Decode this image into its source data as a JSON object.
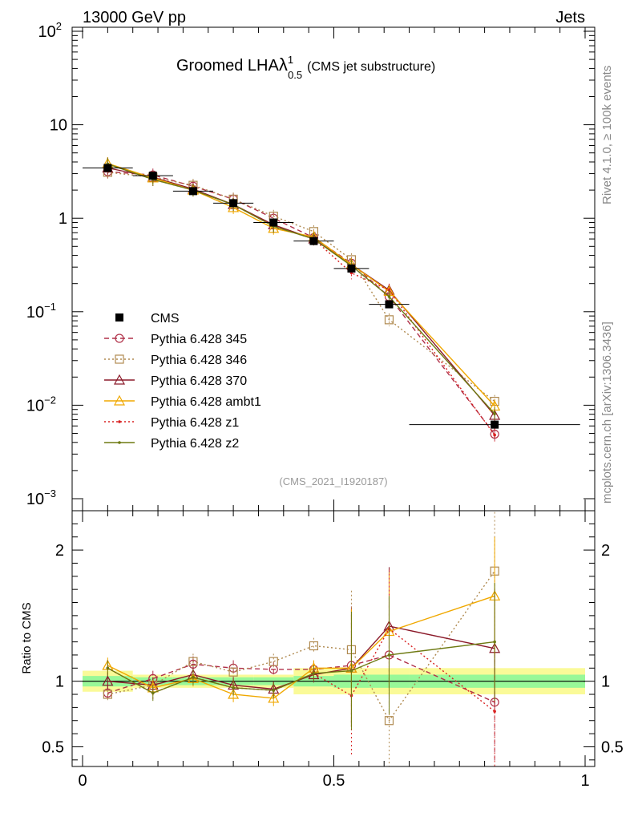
{
  "header": {
    "left": "13000 GeV pp",
    "right": "Jets"
  },
  "side_labels": {
    "rivet": "Rivet 4.1.0, ≥ 100k events",
    "mcplots": "mcplots.cern.ch [arXiv:1306.3436]"
  },
  "plot_title": {
    "main": "Groomed LHA",
    "lambda": "λ",
    "sup": "1",
    "sub": "0.5",
    "detail": "(CMS jet substructure)"
  },
  "analysis_id": "(CMS_2021_I1920187)",
  "colors": {
    "p345": "#b03048",
    "p346": "#b08a50",
    "p370": "#8b1a2a",
    "ambt1": "#f0a800",
    "z1": "#d82020",
    "z2": "#6e7a12",
    "band_inner": "#98f898",
    "band_outer": "#fafa98"
  },
  "chart_data": [
    {
      "type": "line",
      "panel": "main",
      "title": "Groomed LHA λ^1_0.5 (CMS jet substructure)",
      "xlabel": "",
      "ylabel": "",
      "yscale": "log",
      "xlim": [
        0,
        1
      ],
      "ylim": [
        0.001,
        100
      ],
      "y_ticks": [
        {
          "value": 0.001,
          "base": "10",
          "exp": "−3"
        },
        {
          "value": 0.01,
          "base": "10",
          "exp": "−2"
        },
        {
          "value": 0.1,
          "base": "10",
          "exp": "−1"
        },
        {
          "value": 1,
          "base": "1",
          "exp": ""
        },
        {
          "value": 10,
          "base": "10",
          "exp": ""
        },
        {
          "value": 100,
          "base": "10",
          "exp": "2"
        }
      ],
      "x": [
        0.05,
        0.14,
        0.22,
        0.3,
        0.38,
        0.46,
        0.535,
        0.61,
        0.82
      ],
      "cms": {
        "name": "CMS",
        "values": [
          3.45,
          2.85,
          1.95,
          1.45,
          0.9,
          0.57,
          0.29,
          0.12,
          0.0062
        ],
        "xerr": [
          0.05,
          0.04,
          0.04,
          0.04,
          0.04,
          0.04,
          0.035,
          0.04,
          0.17
        ]
      },
      "series": [
        {
          "name": "Pythia 6.428 345",
          "key": "p345",
          "style": "dashed",
          "marker": "circle",
          "values": [
            3.15,
            2.9,
            2.2,
            1.6,
            1.0,
            0.62,
            0.33,
            0.145,
            0.0049
          ]
        },
        {
          "name": "Pythia 6.428 346",
          "key": "p346",
          "style": "dotted",
          "marker": "square",
          "values": [
            3.1,
            2.75,
            2.25,
            1.6,
            1.05,
            0.72,
            0.36,
            0.082,
            0.011
          ]
        },
        {
          "name": "Pythia 6.428 370",
          "key": "p370",
          "style": "solid",
          "marker": "triangle",
          "values": [
            3.45,
            2.75,
            2.05,
            1.4,
            0.85,
            0.6,
            0.32,
            0.17,
            0.0078
          ]
        },
        {
          "name": "Pythia 6.428 ambt1",
          "key": "ambt1",
          "style": "solid",
          "marker": "triangle",
          "values": [
            3.85,
            2.7,
            2.0,
            1.3,
            0.78,
            0.63,
            0.32,
            0.165,
            0.0098
          ]
        },
        {
          "name": "Pythia 6.428 z1",
          "key": "z1",
          "style": "dotted",
          "marker": "dot",
          "values": [
            3.8,
            2.6,
            2.0,
            1.4,
            0.82,
            0.6,
            0.26,
            0.17,
            0.0048
          ]
        },
        {
          "name": "Pythia 6.428 z2",
          "key": "z2",
          "style": "solid",
          "marker": "dot",
          "values": [
            3.8,
            2.6,
            2.0,
            1.4,
            0.82,
            0.6,
            0.31,
            0.145,
            0.0081
          ]
        }
      ],
      "legend": {
        "position": "lower-left"
      }
    },
    {
      "type": "line",
      "panel": "ratio",
      "ylabel": "Ratio to CMS",
      "xlim": [
        0,
        1
      ],
      "ylim": [
        0.35,
        2.3
      ],
      "x_ticks": [
        {
          "value": 0,
          "label": "0"
        },
        {
          "value": 0.5,
          "label": "0.5"
        },
        {
          "value": 1,
          "label": "1"
        }
      ],
      "y_ticks": [
        {
          "value": 0.5,
          "label": "0.5"
        },
        {
          "value": 1,
          "label": "1"
        },
        {
          "value": 2,
          "label": "2"
        }
      ],
      "x": [
        0.05,
        0.14,
        0.22,
        0.3,
        0.38,
        0.46,
        0.535,
        0.61,
        0.82
      ],
      "band_edges": [
        0,
        0.1,
        0.18,
        0.26,
        0.34,
        0.42,
        0.5,
        0.57,
        0.65,
        1.0
      ],
      "band_inner": [
        0.04,
        0.03,
        0.03,
        0.03,
        0.03,
        0.04,
        0.05,
        0.05,
        0.05
      ],
      "band_outer": [
        0.08,
        0.05,
        0.05,
        0.05,
        0.05,
        0.1,
        0.1,
        0.1,
        0.1
      ],
      "series": [
        {
          "name": "Pythia 6.428 345",
          "key": "p345",
          "style": "dashed",
          "marker": "circle",
          "values": [
            0.91,
            1.02,
            1.13,
            1.1,
            1.09,
            1.09,
            1.12,
            1.2,
            0.84
          ]
        },
        {
          "name": "Pythia 6.428 346",
          "key": "p346",
          "style": "dotted",
          "marker": "square",
          "values": [
            0.9,
            0.97,
            1.15,
            1.07,
            1.15,
            1.27,
            1.24,
            0.7,
            1.84
          ]
        },
        {
          "name": "Pythia 6.428 370",
          "key": "p370",
          "style": "solid",
          "marker": "triangle",
          "values": [
            1.0,
            0.97,
            1.05,
            0.97,
            0.94,
            1.05,
            1.1,
            1.42,
            1.25
          ]
        },
        {
          "name": "Pythia 6.428 ambt1",
          "key": "ambt1",
          "style": "solid",
          "marker": "triangle",
          "values": [
            1.12,
            0.95,
            1.02,
            0.9,
            0.87,
            1.1,
            1.1,
            1.38,
            1.65
          ]
        },
        {
          "name": "Pythia 6.428 z1",
          "key": "z1",
          "style": "dotted",
          "marker": "dot",
          "values": [
            1.1,
            0.91,
            1.03,
            0.95,
            0.93,
            1.06,
            0.89,
            1.4,
            0.77
          ]
        },
        {
          "name": "Pythia 6.428 z2",
          "key": "z2",
          "style": "solid",
          "marker": "dot",
          "values": [
            1.1,
            0.91,
            1.03,
            0.95,
            0.93,
            1.06,
            1.08,
            1.2,
            1.3
          ]
        }
      ]
    }
  ]
}
